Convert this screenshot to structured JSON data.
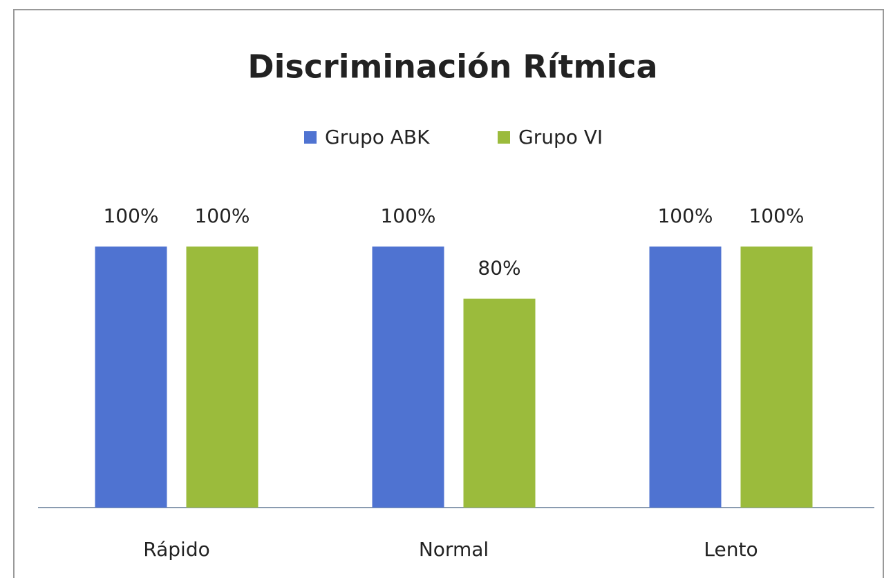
{
  "chart_data": {
    "type": "bar",
    "title": "Discriminación Rítmica",
    "categories": [
      "Rápido",
      "Normal",
      "Lento"
    ],
    "series": [
      {
        "name": "Grupo ABK",
        "color": "#4f73d1",
        "values": [
          100,
          100,
          100
        ],
        "value_labels": [
          "100%",
          "100%",
          "100%"
        ]
      },
      {
        "name": "Grupo VI",
        "color": "#9bbb3c",
        "values": [
          100,
          80,
          100
        ],
        "value_labels": [
          "100%",
          "80%",
          "100%"
        ]
      }
    ]
  }
}
